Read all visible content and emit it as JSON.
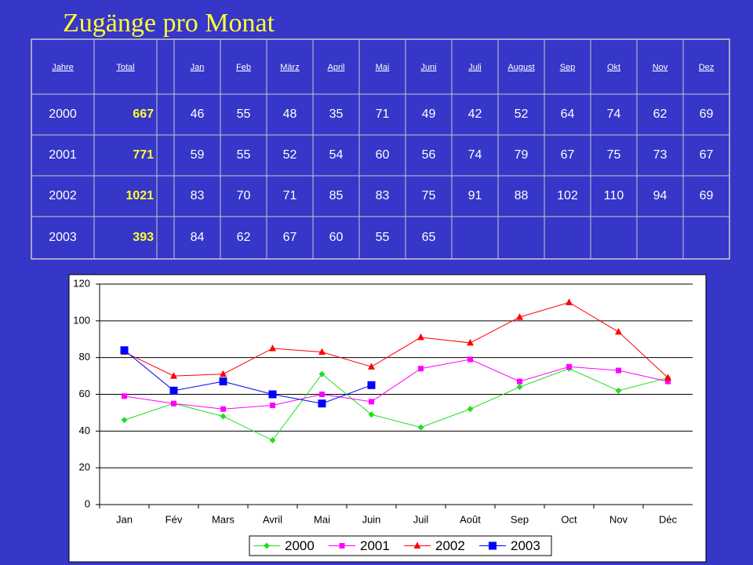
{
  "title": "Zugänge pro Monat",
  "table": {
    "header": [
      "Jahre",
      "Total",
      "Jan",
      "Feb",
      "März",
      "April",
      "Mai",
      "Juni",
      "Juli",
      "August",
      "Sep",
      "Okt",
      "Nov",
      "Dez"
    ],
    "rows": [
      [
        2000,
        667,
        46,
        55,
        48,
        35,
        71,
        49,
        42,
        52,
        64,
        74,
        62,
        69
      ],
      [
        2001,
        771,
        59,
        55,
        52,
        54,
        60,
        56,
        74,
        79,
        67,
        75,
        73,
        67
      ],
      [
        2002,
        1021,
        83,
        70,
        71,
        85,
        83,
        75,
        91,
        88,
        102,
        110,
        94,
        69
      ],
      [
        2003,
        393,
        84,
        62,
        67,
        60,
        55,
        65
      ]
    ]
  },
  "chart_data": {
    "type": "line",
    "categories": [
      "Jan",
      "Fév",
      "Mars",
      "Avril",
      "Mai",
      "Juin",
      "Juil",
      "Août",
      "Sep",
      "Oct",
      "Nov",
      "Déc"
    ],
    "series": [
      {
        "name": "2000",
        "color": "#22dd22",
        "marker": "diamond",
        "values": [
          46,
          55,
          48,
          35,
          71,
          49,
          42,
          52,
          64,
          74,
          62,
          69
        ]
      },
      {
        "name": "2001",
        "color": "#ff00ff",
        "marker": "square",
        "values": [
          59,
          55,
          52,
          54,
          60,
          56,
          74,
          79,
          67,
          75,
          73,
          67
        ]
      },
      {
        "name": "2002",
        "color": "#ff0000",
        "marker": "triangle",
        "values": [
          83,
          70,
          71,
          85,
          83,
          75,
          91,
          88,
          102,
          110,
          94,
          69
        ]
      },
      {
        "name": "2003",
        "color": "#0000ff",
        "marker": "bigsquare",
        "values": [
          84,
          62,
          67,
          60,
          55,
          65,
          null,
          null,
          null,
          null,
          null,
          null
        ]
      }
    ],
    "ylim": [
      0,
      120
    ],
    "yticks": [
      0,
      20,
      40,
      60,
      80,
      100,
      120
    ],
    "grid": true,
    "legend": "bottom"
  }
}
